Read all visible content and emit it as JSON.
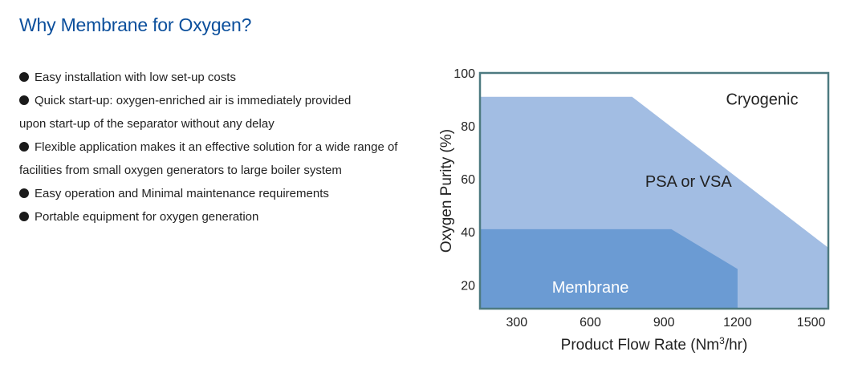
{
  "page": {
    "title": "Why Membrane for Oxygen?"
  },
  "features": [
    [
      "Easy installation with low set-up costs"
    ],
    [
      "Quick start-up: oxygen-enriched air is immediately provided",
      "upon start-up of the separator without any delay"
    ],
    [
      "Flexible application makes it an effective solution for a wide range of",
      "facilities from small oxygen generators to large boiler system"
    ],
    [
      "Easy operation and Minimal maintenance requirements"
    ],
    [
      "Portable equipment for oxygen generation"
    ]
  ],
  "chart_data": {
    "type": "area",
    "xlabel": "Product Flow Rate (Nm³/hr)",
    "ylabel": "Oxygen Purity (%)",
    "x_ticks": [
      300,
      600,
      900,
      1200,
      1500
    ],
    "y_ticks": [
      20,
      40,
      60,
      80,
      100
    ],
    "xlim": [
      150,
      1570
    ],
    "ylim": [
      11,
      100
    ],
    "grid": false,
    "frame_color": "#4d7a80",
    "regions": [
      {
        "label": "Cryogenic",
        "color": "#ffffff",
        "label_at": [
          1300,
          88
        ]
      },
      {
        "label": "PSA or VSA",
        "color": "#a2bde3",
        "points": [
          [
            150,
            91
          ],
          [
            770,
            91
          ],
          [
            1570,
            34
          ],
          [
            1570,
            11
          ],
          [
            150,
            11
          ]
        ],
        "label_at": [
          1000,
          57
        ]
      },
      {
        "label": "Membrane",
        "color": "#6b9bd3",
        "points": [
          [
            150,
            41
          ],
          [
            930,
            41
          ],
          [
            1200,
            26
          ],
          [
            1200,
            11
          ],
          [
            150,
            11
          ]
        ],
        "label_at": [
          600,
          17
        ]
      }
    ]
  }
}
